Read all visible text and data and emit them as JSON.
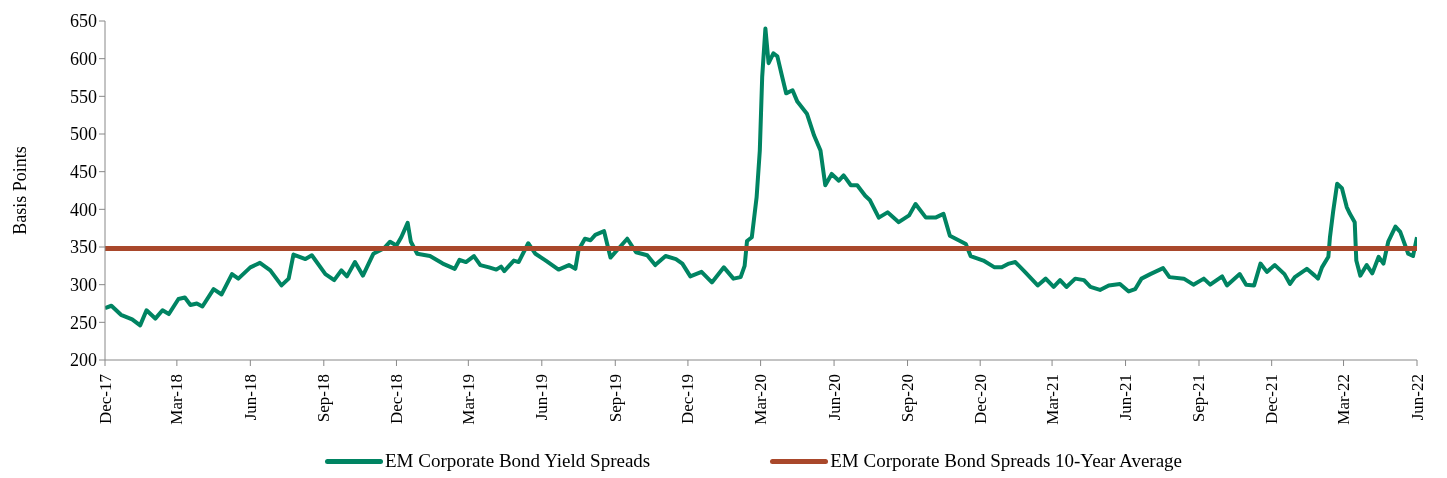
{
  "chart_data": {
    "type": "line",
    "ylabel": "Basis Points",
    "ylim": [
      200,
      650
    ],
    "yticks": [
      200,
      250,
      300,
      350,
      400,
      450,
      500,
      550,
      600,
      650
    ],
    "xlim": [
      "2017-12-01",
      "2022-06-01"
    ],
    "xticks": [
      {
        "value": "2017-12-01",
        "label": "Dec-17"
      },
      {
        "value": "2018-03-01",
        "label": "Mar-18"
      },
      {
        "value": "2018-06-01",
        "label": "Jun-18"
      },
      {
        "value": "2018-09-01",
        "label": "Sep-18"
      },
      {
        "value": "2018-12-01",
        "label": "Dec-18"
      },
      {
        "value": "2019-03-01",
        "label": "Mar-19"
      },
      {
        "value": "2019-06-01",
        "label": "Jun-19"
      },
      {
        "value": "2019-09-01",
        "label": "Sep-19"
      },
      {
        "value": "2019-12-01",
        "label": "Dec-19"
      },
      {
        "value": "2020-03-01",
        "label": "Mar-20"
      },
      {
        "value": "2020-06-01",
        "label": "Jun-20"
      },
      {
        "value": "2020-09-01",
        "label": "Sep-20"
      },
      {
        "value": "2020-12-01",
        "label": "Dec-20"
      },
      {
        "value": "2021-03-01",
        "label": "Mar-21"
      },
      {
        "value": "2021-06-01",
        "label": "Jun-21"
      },
      {
        "value": "2021-09-01",
        "label": "Sep-21"
      },
      {
        "value": "2021-12-01",
        "label": "Dec-21"
      },
      {
        "value": "2022-03-01",
        "label": "Mar-22"
      },
      {
        "value": "2022-06-01",
        "label": "Jun-22"
      }
    ],
    "grid": false,
    "legend": "bottom",
    "marker": "none",
    "line_style": "solid",
    "series": [
      {
        "name": "EM Corporate Bond Yield Spreads",
        "color": "#008462",
        "type": "line",
        "x": [
          "2017-12-01",
          "2017-12-09",
          "2017-12-21",
          "2018-01-04",
          "2018-01-14",
          "2018-01-22",
          "2018-02-02",
          "2018-02-11",
          "2018-02-19",
          "2018-03-03",
          "2018-03-11",
          "2018-03-18",
          "2018-03-26",
          "2018-04-02",
          "2018-04-16",
          "2018-04-26",
          "2018-05-09",
          "2018-05-17",
          "2018-06-01",
          "2018-06-13",
          "2018-06-26",
          "2018-07-10",
          "2018-07-19",
          "2018-07-25",
          "2018-08-09",
          "2018-08-17",
          "2018-09-03",
          "2018-09-14",
          "2018-09-23",
          "2018-09-30",
          "2018-10-10",
          "2018-10-20",
          "2018-11-02",
          "2018-11-15",
          "2018-11-23",
          "2018-12-01",
          "2018-12-07",
          "2018-12-15",
          "2018-12-19",
          "2018-12-27",
          "2019-01-12",
          "2019-01-28",
          "2019-02-12",
          "2019-02-18",
          "2019-02-26",
          "2019-03-08",
          "2019-03-16",
          "2019-03-27",
          "2019-04-05",
          "2019-04-11",
          "2019-04-15",
          "2019-04-27",
          "2019-05-03",
          "2019-05-15",
          "2019-05-24",
          "2019-06-06",
          "2019-06-22",
          "2019-07-05",
          "2019-07-13",
          "2019-07-17",
          "2019-07-25",
          "2019-08-01",
          "2019-08-07",
          "2019-08-18",
          "2019-08-26",
          "2019-09-06",
          "2019-09-16",
          "2019-09-27",
          "2019-10-11",
          "2019-10-21",
          "2019-11-03",
          "2019-11-16",
          "2019-11-24",
          "2019-12-04",
          "2019-12-18",
          "2019-12-31",
          "2020-01-15",
          "2020-01-27",
          "2020-02-05",
          "2020-02-10",
          "2020-02-13",
          "2020-02-19",
          "2020-02-25",
          "2020-02-29",
          "2020-03-03",
          "2020-03-07",
          "2020-03-11",
          "2020-03-17",
          "2020-03-22",
          "2020-03-28",
          "2020-04-02",
          "2020-04-10",
          "2020-04-16",
          "2020-04-28",
          "2020-05-07",
          "2020-05-15",
          "2020-05-21",
          "2020-05-29",
          "2020-06-07",
          "2020-06-13",
          "2020-06-22",
          "2020-06-30",
          "2020-07-10",
          "2020-07-16",
          "2020-07-27",
          "2020-08-07",
          "2020-08-21",
          "2020-09-03",
          "2020-09-11",
          "2020-09-24",
          "2020-10-06",
          "2020-10-16",
          "2020-10-24",
          "2020-11-13",
          "2020-11-19",
          "2020-12-05",
          "2020-12-19",
          "2020-12-28",
          "2021-01-06",
          "2021-01-14",
          "2021-01-26",
          "2021-02-11",
          "2021-02-21",
          "2021-03-03",
          "2021-03-11",
          "2021-03-19",
          "2021-03-30",
          "2021-04-10",
          "2021-04-18",
          "2021-04-30",
          "2021-05-11",
          "2021-05-25",
          "2021-06-05",
          "2021-06-13",
          "2021-06-21",
          "2021-07-02",
          "2021-07-18",
          "2021-07-26",
          "2021-08-13",
          "2021-08-25",
          "2021-09-07",
          "2021-09-15",
          "2021-09-30",
          "2021-10-06",
          "2021-10-22",
          "2021-10-30",
          "2021-11-09",
          "2021-11-17",
          "2021-11-25",
          "2021-12-05",
          "2021-12-17",
          "2021-12-24",
          "2021-12-30",
          "2022-01-14",
          "2022-01-24",
          "2022-01-28",
          "2022-02-02",
          "2022-02-10",
          "2022-02-12",
          "2022-02-16",
          "2022-02-21",
          "2022-02-27",
          "2022-03-05",
          "2022-03-09",
          "2022-03-15",
          "2022-03-17",
          "2022-03-22",
          "2022-03-30",
          "2022-04-06",
          "2022-04-14",
          "2022-04-20",
          "2022-04-26",
          "2022-05-05",
          "2022-05-11",
          "2022-05-21",
          "2022-05-27",
          "2022-06-01"
        ],
        "values": [
          269,
          272,
          260,
          254,
          246,
          266,
          255,
          266,
          261,
          281,
          283,
          273,
          275,
          271,
          294,
          287,
          314,
          308,
          323,
          329,
          319,
          299,
          308,
          340,
          334,
          339,
          314,
          306,
          319,
          311,
          330,
          312,
          341,
          348,
          357,
          352,
          363,
          382,
          357,
          341,
          338,
          328,
          321,
          333,
          330,
          338,
          326,
          323,
          320,
          324,
          318,
          332,
          330,
          355,
          341,
          332,
          320,
          326,
          321,
          346,
          361,
          359,
          366,
          371,
          336,
          349,
          361,
          343,
          339,
          326,
          338,
          334,
          328,
          311,
          317,
          303,
          323,
          308,
          310,
          325,
          358,
          363,
          416,
          478,
          576,
          640,
          594,
          607,
          603,
          576,
          554,
          558,
          543,
          527,
          498,
          478,
          432,
          447,
          438,
          445,
          432,
          432,
          418,
          412,
          389,
          396,
          383,
          392,
          407,
          389,
          389,
          394,
          365,
          354,
          338,
          332,
          323,
          323,
          328,
          330,
          317,
          299,
          308,
          297,
          306,
          297,
          308,
          306,
          297,
          293,
          299,
          301,
          291,
          294,
          308,
          314,
          322,
          310,
          308,
          300,
          308,
          300,
          311,
          299,
          314,
          300,
          299,
          328,
          317,
          326,
          314,
          301,
          310,
          321,
          312,
          308,
          323,
          337,
          363,
          397,
          434,
          428,
          403,
          394,
          383,
          332,
          312,
          326,
          315,
          337,
          328,
          357,
          377,
          370,
          341,
          338,
          363
        ]
      },
      {
        "name": "EM Corporate Bond Spreads 10-Year Average",
        "color": "#a9482b",
        "type": "line",
        "x": [
          "2017-12-01",
          "2022-06-01"
        ],
        "values": [
          348,
          348
        ]
      }
    ]
  }
}
